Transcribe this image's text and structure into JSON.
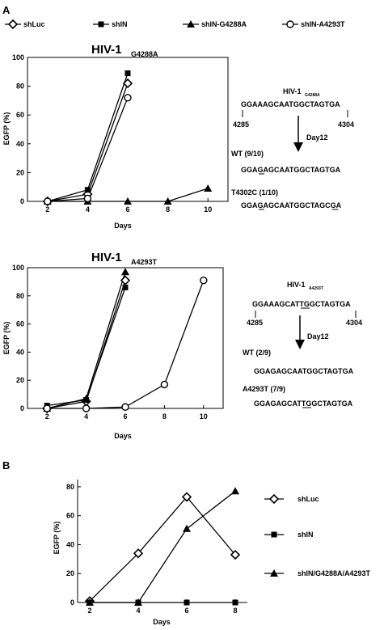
{
  "panel_labels": {
    "a": "A",
    "b": "B"
  },
  "legend_top": [
    {
      "name": "shLuc",
      "marker": "diamond-open"
    },
    {
      "name": "shIN",
      "marker": "square-filled"
    },
    {
      "name": "shIN-G4288A",
      "marker": "triangle-filled"
    },
    {
      "name": "shIN-A4293T",
      "marker": "circle-open"
    }
  ],
  "seq1": {
    "title_main": "HIV-1",
    "title_sub": "G4288A",
    "seq": "GGAAAGCAATGGCTAGTGA",
    "pos_start": "4285",
    "pos_end": "4304",
    "arrow_label": "Day12",
    "result1_label": "WT (9/10)",
    "result1_seq": "GGAGAGCAATGGCTAGTGA",
    "result2_label": "T4302C (1/10)",
    "result2_seq": "GGAGAGCAATGGCTAGCGA"
  },
  "seq2": {
    "title_main": "HIV-1",
    "title_sub": "A4293T",
    "seq": "GGAAAGCATTGGCTAGTGA",
    "pos_start": "4285",
    "pos_end": "4304",
    "arrow_label": "Day12",
    "result1_label": "WT (2/9)",
    "result1_seq": "GGAGAGCAATGGCTAGTGA",
    "result2_label": "A4293T (7/9)",
    "result2_seq": "GGAGAGCATTGGCTAGTGA"
  },
  "chart_data": [
    {
      "id": "chart1",
      "type": "line",
      "title": "HIV-1",
      "title_sub": "G4288A",
      "xlabel": "Days",
      "ylabel": "EGFP (%)",
      "xlim": [
        1,
        11
      ],
      "ylim": [
        0,
        100
      ],
      "xticks": [
        2,
        4,
        6,
        8,
        10
      ],
      "yticks": [
        0,
        20,
        40,
        60,
        80,
        100
      ],
      "series": [
        {
          "name": "shLuc",
          "marker": "diamond-open",
          "points": [
            [
              2,
              0
            ],
            [
              4,
              5
            ],
            [
              6,
              82
            ]
          ]
        },
        {
          "name": "shIN",
          "marker": "square-filled",
          "points": [
            [
              2,
              0
            ],
            [
              4,
              8
            ],
            [
              6,
              89
            ]
          ]
        },
        {
          "name": "shIN-G4288A",
          "marker": "triangle-filled",
          "points": [
            [
              2,
              0
            ],
            [
              4,
              0
            ],
            [
              6,
              0
            ],
            [
              8,
              0
            ],
            [
              10,
              9
            ]
          ]
        },
        {
          "name": "shIN-A4293T",
          "marker": "circle-open",
          "points": [
            [
              2,
              0
            ],
            [
              4,
              2
            ],
            [
              6,
              72
            ]
          ]
        }
      ]
    },
    {
      "id": "chart2",
      "type": "line",
      "title": "HIV-1",
      "title_sub": "A4293T",
      "xlabel": "Days",
      "ylabel": "EGFP (%)",
      "xlim": [
        1,
        11
      ],
      "ylim": [
        0,
        100
      ],
      "xticks": [
        2,
        4,
        6,
        8,
        10
      ],
      "yticks": [
        0,
        20,
        40,
        60,
        80,
        100
      ],
      "series": [
        {
          "name": "shLuc",
          "marker": "diamond-open",
          "points": [
            [
              2,
              0
            ],
            [
              4,
              5
            ],
            [
              6,
              91
            ]
          ]
        },
        {
          "name": "shIN",
          "marker": "square-filled",
          "points": [
            [
              2,
              2
            ],
            [
              4,
              6
            ],
            [
              6,
              86
            ]
          ]
        },
        {
          "name": "shIN-G4288A",
          "marker": "triangle-filled",
          "points": [
            [
              2,
              0
            ],
            [
              4,
              7
            ],
            [
              6,
              97
            ]
          ]
        },
        {
          "name": "shIN-A4293T",
          "marker": "circle-open",
          "points": [
            [
              2,
              0
            ],
            [
              4,
              0
            ],
            [
              6,
              1
            ],
            [
              8,
              17
            ],
            [
              10,
              91
            ]
          ]
        }
      ]
    },
    {
      "id": "chart3",
      "type": "line",
      "xlabel": "Days",
      "ylabel": "EGFP (%)",
      "xlim": [
        1.5,
        8.5
      ],
      "ylim": [
        0,
        85
      ],
      "xticks": [
        2,
        4,
        6,
        8
      ],
      "yticks": [
        0,
        20,
        40,
        60,
        80
      ],
      "legend": "right",
      "series": [
        {
          "name": "shLuc",
          "marker": "diamond-open",
          "points": [
            [
              2,
              1
            ],
            [
              4,
              34
            ],
            [
              6,
              73
            ],
            [
              8,
              33
            ]
          ]
        },
        {
          "name": "shIN",
          "marker": "square-filled",
          "points": [
            [
              2,
              0
            ],
            [
              4,
              0
            ],
            [
              6,
              0
            ],
            [
              8,
              0
            ]
          ]
        },
        {
          "name": "shIN/G4288A/A4293T",
          "marker": "triangle-filled",
          "points": [
            [
              2,
              0
            ],
            [
              4,
              0
            ],
            [
              6,
              51
            ],
            [
              8,
              77
            ]
          ]
        }
      ]
    }
  ]
}
